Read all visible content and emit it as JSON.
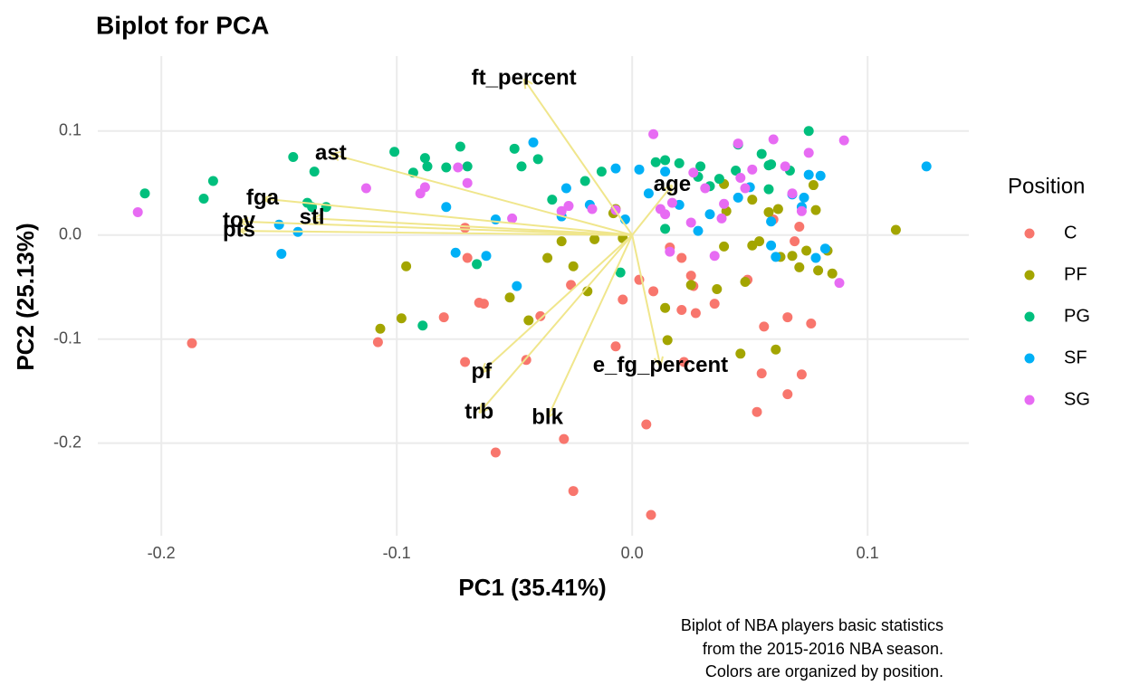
{
  "chart_data": {
    "type": "scatter",
    "title": "Biplot for PCA",
    "xlabel": "PC1 (35.41%)",
    "ylabel": "PC2 (25.13%)",
    "caption": [
      "Biplot of NBA players basic statistics",
      "from the 2015-2016 NBA season.",
      "Colors are organized by position."
    ],
    "legend_title": "Position",
    "legend": "right",
    "grid": true,
    "xlim": [
      -0.227,
      0.143
    ],
    "ylim": [
      -0.289,
      0.172
    ],
    "xticks": [
      -0.2,
      -0.1,
      {
        "value": 0,
        "label": "0.0"
      },
      0.1
    ],
    "yticks": [
      -0.2,
      -0.1,
      {
        "value": 0,
        "label": "0.0"
      },
      0.1
    ],
    "series": [
      {
        "name": "C",
        "color": "#F8766D",
        "x": [
          -0.187,
          -0.108,
          -0.08,
          -0.071,
          -0.07,
          -0.065,
          -0.063,
          -0.071,
          -0.045,
          -0.039,
          -0.058,
          -0.029,
          -0.025,
          0.008,
          0.006,
          -0.007,
          -0.004,
          -0.026,
          0.003,
          0.009,
          0.021,
          0.025,
          0.026,
          0.021,
          0.027,
          0.035,
          0.049,
          0.055,
          0.053,
          0.056,
          0.066,
          0.066,
          0.072,
          0.076,
          0.069,
          0.071,
          0.06,
          0.022,
          0.016
        ],
        "values": [
          -0.104,
          -0.103,
          -0.079,
          0.007,
          -0.022,
          -0.065,
          -0.066,
          -0.122,
          -0.12,
          -0.078,
          -0.209,
          -0.196,
          -0.246,
          -0.269,
          -0.182,
          -0.107,
          -0.062,
          -0.048,
          -0.043,
          -0.054,
          -0.022,
          -0.039,
          -0.049,
          -0.072,
          -0.075,
          -0.066,
          -0.043,
          -0.133,
          -0.17,
          -0.088,
          -0.079,
          -0.153,
          -0.134,
          -0.085,
          -0.006,
          0.008,
          0.015,
          -0.122,
          -0.012
        ]
      },
      {
        "name": "PF",
        "color": "#A3A500",
        "x": [
          0.112,
          -0.096,
          -0.107,
          -0.098,
          -0.052,
          -0.044,
          -0.036,
          -0.03,
          -0.025,
          -0.019,
          -0.016,
          -0.004,
          -0.007,
          0.014,
          0.015,
          0.025,
          0.036,
          0.046,
          0.048,
          0.051,
          0.039,
          0.054,
          0.063,
          0.061,
          0.071,
          0.068,
          0.074,
          0.083,
          0.079,
          0.085,
          0.078,
          0.058,
          0.062,
          0.077,
          0.04,
          0.039,
          0.051,
          -0.008
        ],
        "values": [
          0.005,
          -0.03,
          -0.09,
          -0.08,
          -0.06,
          -0.082,
          -0.022,
          -0.006,
          -0.03,
          -0.054,
          -0.004,
          -0.003,
          0.025,
          -0.07,
          -0.101,
          -0.048,
          -0.052,
          -0.114,
          -0.045,
          -0.01,
          -0.011,
          -0.006,
          -0.021,
          -0.11,
          -0.031,
          -0.02,
          -0.015,
          -0.015,
          -0.034,
          -0.037,
          0.024,
          0.022,
          0.025,
          0.048,
          0.023,
          0.049,
          0.034,
          0.021
        ]
      },
      {
        "name": "PG",
        "color": "#00BF7D",
        "x": [
          -0.207,
          -0.182,
          -0.178,
          -0.144,
          -0.135,
          -0.138,
          -0.136,
          -0.13,
          -0.101,
          -0.093,
          -0.088,
          -0.087,
          -0.079,
          -0.073,
          -0.07,
          -0.05,
          -0.047,
          -0.04,
          -0.034,
          -0.02,
          -0.013,
          -0.089,
          -0.066,
          0.01,
          0.014,
          0.02,
          0.028,
          0.037,
          0.045,
          0.055,
          0.058,
          0.059,
          0.058,
          0.067,
          0.075,
          0.029,
          0.033,
          0.044,
          -0.005,
          0.014
        ],
        "values": [
          0.04,
          0.035,
          0.052,
          0.075,
          0.061,
          0.031,
          0.027,
          0.027,
          0.08,
          0.06,
          0.074,
          0.066,
          0.065,
          0.085,
          0.066,
          0.083,
          0.066,
          0.073,
          0.034,
          0.052,
          0.061,
          -0.087,
          -0.028,
          0.07,
          0.072,
          0.069,
          0.056,
          0.054,
          0.087,
          0.078,
          0.067,
          0.068,
          0.044,
          0.062,
          0.1,
          0.066,
          0.047,
          0.062,
          -0.036,
          0.006
        ]
      },
      {
        "name": "SF",
        "color": "#00B0F6",
        "x": [
          0.125,
          -0.149,
          -0.142,
          -0.15,
          -0.062,
          -0.075,
          -0.079,
          -0.058,
          -0.049,
          -0.042,
          -0.028,
          -0.03,
          -0.018,
          -0.007,
          0.007,
          0.003,
          0.014,
          0.02,
          0.028,
          0.033,
          0.045,
          0.05,
          0.059,
          0.061,
          0.068,
          0.073,
          0.075,
          0.08,
          0.082,
          0.078,
          0.059,
          0.072,
          -0.003
        ],
        "values": [
          0.066,
          -0.018,
          0.003,
          0.01,
          -0.02,
          -0.017,
          0.027,
          0.015,
          -0.049,
          0.089,
          0.045,
          0.018,
          0.029,
          0.064,
          0.04,
          0.063,
          0.061,
          0.029,
          0.004,
          0.02,
          0.036,
          0.046,
          0.013,
          -0.021,
          0.039,
          0.036,
          0.058,
          0.057,
          -0.013,
          -0.022,
          -0.01,
          0.027,
          0.015
        ]
      },
      {
        "name": "SG",
        "color": "#E76BF3",
        "x": [
          -0.21,
          -0.113,
          -0.09,
          -0.088,
          -0.074,
          -0.07,
          -0.051,
          -0.03,
          -0.027,
          -0.017,
          -0.007,
          0.009,
          0.012,
          0.017,
          0.025,
          0.026,
          0.031,
          0.039,
          0.038,
          0.045,
          0.048,
          0.051,
          0.06,
          0.065,
          0.068,
          0.075,
          0.072,
          0.09,
          0.088,
          0.016,
          0.035,
          0.046,
          0.014
        ],
        "values": [
          0.022,
          0.045,
          0.04,
          0.046,
          0.065,
          0.05,
          0.016,
          0.023,
          0.028,
          0.025,
          0.024,
          0.097,
          0.025,
          0.031,
          0.012,
          0.06,
          0.045,
          0.03,
          0.016,
          0.088,
          0.045,
          0.063,
          0.092,
          0.066,
          0.04,
          0.079,
          0.023,
          0.091,
          -0.046,
          -0.016,
          -0.02,
          0.055,
          0.02
        ]
      }
    ],
    "arrows": [
      {
        "name": "ft_percent",
        "x": -0.046,
        "y": 0.15
      },
      {
        "name": "ast",
        "x": -0.128,
        "y": 0.078
      },
      {
        "name": "fga",
        "x": -0.157,
        "y": 0.035
      },
      {
        "name": "tov",
        "x": -0.167,
        "y": 0.013
      },
      {
        "name": "pts",
        "x": -0.167,
        "y": 0.004
      },
      {
        "name": "stl",
        "x": -0.136,
        "y": 0.016
      },
      {
        "name": "age",
        "x": 0.017,
        "y": 0.048
      },
      {
        "name": "e_fg_percent",
        "x": 0.012,
        "y": -0.126
      },
      {
        "name": "pf",
        "x": -0.064,
        "y": -0.132
      },
      {
        "name": "trb",
        "x": -0.065,
        "y": -0.171
      },
      {
        "name": "blk",
        "x": -0.036,
        "y": -0.176
      }
    ],
    "arrow_color": "#F0E68C"
  }
}
